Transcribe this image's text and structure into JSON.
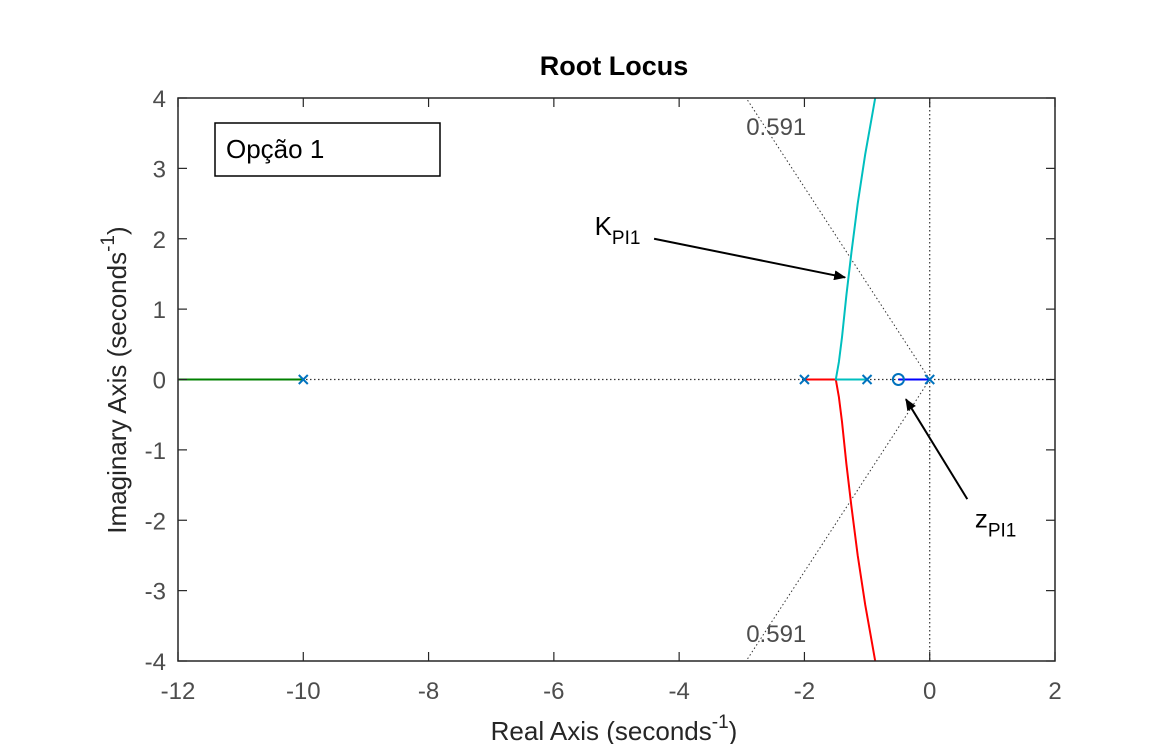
{
  "chart_data": {
    "type": "line",
    "title": "Root Locus",
    "xlabel": "Real Axis (seconds",
    "xlabel_sup": "-1",
    "xlabel_close": ")",
    "ylabel": "Imaginary Axis (seconds",
    "ylabel_sup": "-1",
    "ylabel_close": ")",
    "xlim": [
      -12,
      2
    ],
    "ylim": [
      -4,
      4
    ],
    "xticks": [
      -12,
      -10,
      -8,
      -6,
      -4,
      -2,
      0,
      2
    ],
    "yticks": [
      -4,
      -3,
      -2,
      -1,
      0,
      1,
      2,
      3,
      4
    ],
    "xtick_labels": [
      "-12",
      "-10",
      "-8",
      "-6",
      "-4",
      "-2",
      "0",
      "2"
    ],
    "ytick_labels": [
      "-4",
      "-3",
      "-2",
      "-1",
      "0",
      "1",
      "2",
      "3",
      "4"
    ],
    "grid": false,
    "legend_box": "Opção 1",
    "poles": [
      [
        -10,
        0
      ],
      [
        -2,
        0
      ],
      [
        -1,
        0
      ],
      [
        0,
        0
      ]
    ],
    "zeros": [
      [
        -0.5,
        0
      ]
    ],
    "series": [
      {
        "color": "#008000",
        "points": [
          [
            -12,
            0
          ],
          [
            -10,
            0
          ]
        ]
      },
      {
        "color": "#ff0000",
        "points": [
          [
            -2,
            0
          ],
          [
            -1.5,
            0
          ],
          [
            -1.45,
            -0.25
          ],
          [
            -1.4,
            -0.6
          ],
          [
            -1.33,
            -1.2
          ],
          [
            -1.25,
            -1.8
          ],
          [
            -1.15,
            -2.5
          ],
          [
            -1.03,
            -3.2
          ],
          [
            -0.92,
            -3.75
          ],
          [
            -0.87,
            -4
          ]
        ]
      },
      {
        "color": "#00bfbf",
        "points": [
          [
            -1,
            0
          ],
          [
            -1.5,
            0
          ],
          [
            -1.45,
            0.25
          ],
          [
            -1.4,
            0.6
          ],
          [
            -1.33,
            1.2
          ],
          [
            -1.25,
            1.8
          ],
          [
            -1.15,
            2.5
          ],
          [
            -1.03,
            3.2
          ],
          [
            -0.92,
            3.75
          ],
          [
            -0.87,
            4
          ]
        ]
      },
      {
        "color": "#0000ff",
        "points": [
          [
            -0.5,
            0
          ],
          [
            0,
            0
          ]
        ]
      }
    ],
    "damping_value": "0.591",
    "damping_lines": [
      [
        [
          0,
          0
        ],
        [
          -2.93,
          4
        ]
      ],
      [
        [
          0,
          0
        ],
        [
          -2.93,
          -4
        ]
      ]
    ],
    "damping_labels": [
      {
        "text": "0.591",
        "x": -2.45,
        "y": 3.6
      },
      {
        "text": "0.591",
        "x": -2.45,
        "y": -3.6
      }
    ],
    "annotations": [
      {
        "main": "K",
        "sub": "PI1",
        "text_x": -5.35,
        "text_y": 2.05,
        "arrow_from": [
          -4.4,
          2.0
        ],
        "arrow_to": [
          -1.35,
          1.45
        ]
      },
      {
        "main": "z",
        "sub": "PI1",
        "text_x": 0.72,
        "text_y": -2.1,
        "arrow_from": [
          0.6,
          -1.7
        ],
        "arrow_to": [
          -0.38,
          -0.28
        ]
      }
    ]
  }
}
